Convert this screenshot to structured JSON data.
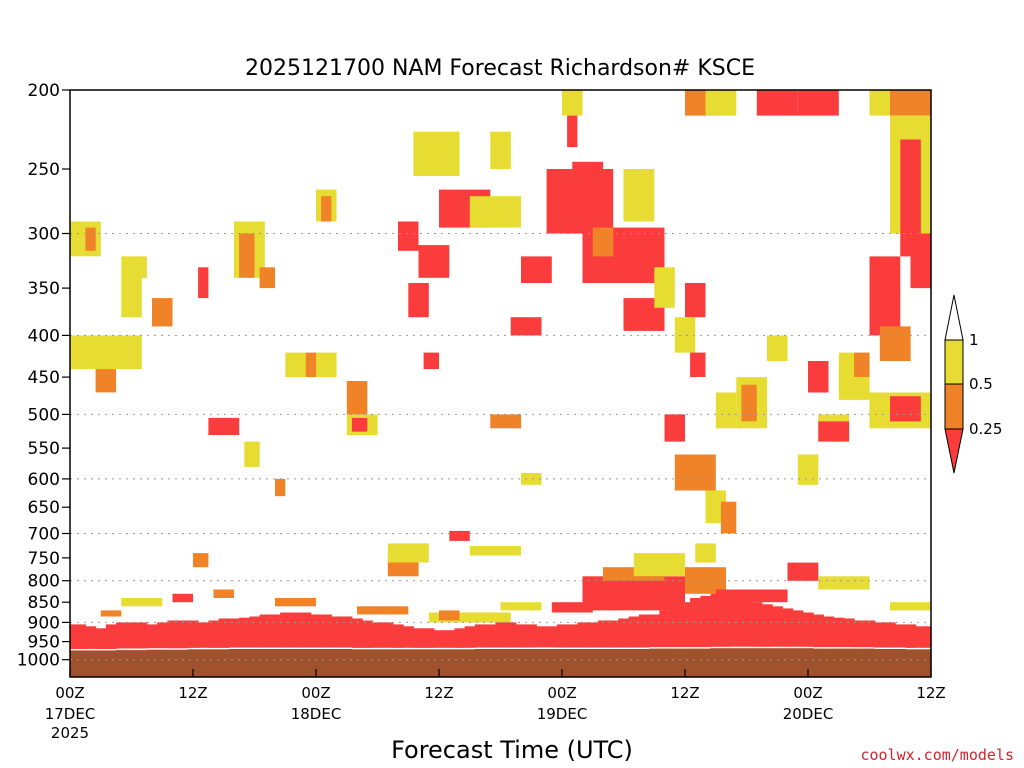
{
  "colors": {
    "background": "#ffffff",
    "lt_025": "#fa3c3c",
    "r025_05": "#f08228",
    "r05_1": "#e6dc32",
    "gt_1": "#ffffff",
    "ground": "#a0522d",
    "grid": "#999999"
  },
  "chart_data": {
    "type": "heatmap",
    "title": "2025121700 NAM Forecast Richardson# KSCE",
    "xlabel": "Forecast Time (UTC)",
    "ylabel": "",
    "y_scale": "log-pressure",
    "y_reversed": true,
    "ylim": [
      1050,
      200
    ],
    "y_ticks": [
      200,
      250,
      300,
      350,
      400,
      450,
      500,
      550,
      600,
      650,
      700,
      750,
      800,
      850,
      900,
      950,
      1000
    ],
    "y_tick_labels": [
      "200",
      "250",
      "300",
      "350",
      "400",
      "450",
      "500",
      "550",
      "600",
      "650",
      "700",
      "750",
      "800",
      "850",
      "900",
      "950",
      "1000"
    ],
    "dotted_grid_levels": [
      300,
      400,
      500,
      600,
      700,
      800,
      900,
      1000
    ],
    "x_range_hours": [
      0,
      84
    ],
    "x_ticks_hours": [
      0,
      12,
      24,
      36,
      48,
      60,
      72,
      84
    ],
    "x_tick_labels": [
      "00Z",
      "12Z",
      "00Z",
      "12Z",
      "00Z",
      "12Z",
      "00Z",
      "12Z"
    ],
    "date_labels": [
      {
        "hour": 0,
        "text": "17DEC"
      },
      {
        "hour": 24,
        "text": "18DEC"
      },
      {
        "hour": 48,
        "text": "19DEC"
      },
      {
        "hour": 72,
        "text": "20DEC"
      }
    ],
    "year_label": {
      "hour": 0,
      "text": "2025"
    },
    "legend": {
      "placement": "right",
      "labels": [
        "1",
        "0.5",
        "0.25"
      ],
      "bins": [
        {
          "range": ">1",
          "color": "#ffffff"
        },
        {
          "range": "0.5-1",
          "color": "#e6dc32"
        },
        {
          "range": "0.25-0.5",
          "color": "#f08228"
        },
        {
          "range": "<0.25",
          "color": "#fa3c3c"
        }
      ]
    },
    "ground_top_mb": [
      970,
      970,
      970,
      970,
      970,
      969,
      969,
      969,
      968,
      968,
      968,
      968,
      967,
      967,
      967,
      967,
      966,
      966,
      966,
      966,
      966,
      966,
      966,
      966,
      966,
      966,
      966,
      966,
      967,
      967,
      967,
      967,
      967,
      967,
      967,
      967,
      967,
      967,
      967,
      967,
      966,
      966,
      966,
      966,
      966,
      966,
      966,
      966,
      966,
      966,
      966,
      966,
      966,
      966,
      966,
      966,
      966,
      965,
      965,
      965,
      965,
      965,
      965,
      964,
      964,
      964,
      964,
      964,
      964,
      964,
      964,
      964,
      964,
      965,
      965,
      965,
      965,
      965,
      965,
      966,
      966,
      966,
      967,
      967,
      967
    ],
    "ri_lt_025_top_mb": [
      905,
      905,
      910,
      915,
      905,
      900,
      900,
      900,
      905,
      900,
      895,
      895,
      895,
      900,
      895,
      890,
      890,
      888,
      885,
      880,
      880,
      875,
      875,
      875,
      880,
      880,
      885,
      885,
      890,
      895,
      900,
      900,
      905,
      910,
      915,
      915,
      920,
      920,
      915,
      910,
      905,
      905,
      900,
      900,
      905,
      905,
      910,
      910,
      905,
      905,
      900,
      900,
      895,
      895,
      890,
      885,
      880,
      880,
      870,
      860,
      850,
      840,
      835,
      830,
      835,
      840,
      845,
      850,
      855,
      860,
      865,
      870,
      875,
      880,
      885,
      888,
      890,
      895,
      895,
      900,
      900,
      905,
      905,
      910,
      910
    ],
    "patches": [
      {
        "h": [
          0,
          3
        ],
        "p": [
          290,
          320
        ],
        "c": "0.5-1"
      },
      {
        "h": [
          1.5,
          2.5
        ],
        "p": [
          295,
          315
        ],
        "c": "0.25-0.5"
      },
      {
        "h": [
          0,
          7
        ],
        "p": [
          400,
          440
        ],
        "c": "0.5-1"
      },
      {
        "h": [
          2.5,
          4.5
        ],
        "p": [
          440,
          470
        ],
        "c": "0.25-0.5"
      },
      {
        "h": [
          5,
          7
        ],
        "p": [
          320,
          380
        ],
        "c": "0.5-1"
      },
      {
        "h": [
          8,
          10
        ],
        "p": [
          360,
          390
        ],
        "c": "0.25-0.5"
      },
      {
        "h": [
          12.5,
          13.5
        ],
        "p": [
          330,
          360
        ],
        "c": "<0.25"
      },
      {
        "h": [
          16,
          19
        ],
        "p": [
          290,
          340
        ],
        "c": "0.5-1"
      },
      {
        "h": [
          16.5,
          18
        ],
        "p": [
          300,
          340
        ],
        "c": "0.25-0.5"
      },
      {
        "h": [
          18.5,
          20
        ],
        "p": [
          330,
          350
        ],
        "c": "0.25-0.5"
      },
      {
        "h": [
          24,
          26
        ],
        "p": [
          265,
          290
        ],
        "c": "0.5-1"
      },
      {
        "h": [
          24.5,
          25.5
        ],
        "p": [
          270,
          290
        ],
        "c": "0.25-0.5"
      },
      {
        "h": [
          21,
          26
        ],
        "p": [
          420,
          450
        ],
        "c": "0.5-1"
      },
      {
        "h": [
          23,
          24
        ],
        "p": [
          420,
          450
        ],
        "c": "0.25-0.5"
      },
      {
        "h": [
          27,
          30
        ],
        "p": [
          500,
          530
        ],
        "c": "0.5-1"
      },
      {
        "h": [
          27.5,
          29
        ],
        "p": [
          505,
          525
        ],
        "c": "<0.25"
      },
      {
        "h": [
          13.5,
          16.5
        ],
        "p": [
          505,
          530
        ],
        "c": "<0.25"
      },
      {
        "h": [
          32,
          34
        ],
        "p": [
          290,
          315
        ],
        "c": "<0.25"
      },
      {
        "h": [
          33,
          35
        ],
        "p": [
          345,
          380
        ],
        "c": "<0.25"
      },
      {
        "h": [
          34,
          36
        ],
        "p": [
          230,
          255
        ],
        "c": "0.25-0.5"
      },
      {
        "h": [
          33.5,
          38
        ],
        "p": [
          225,
          255
        ],
        "c": "0.5-1"
      },
      {
        "h": [
          36,
          41
        ],
        "p": [
          265,
          295
        ],
        "c": "<0.25"
      },
      {
        "h": [
          39,
          44
        ],
        "p": [
          270,
          295
        ],
        "c": "0.5-1"
      },
      {
        "h": [
          34,
          37
        ],
        "p": [
          310,
          340
        ],
        "c": "<0.25"
      },
      {
        "h": [
          34.5,
          36
        ],
        "p": [
          420,
          440
        ],
        "c": "<0.25"
      },
      {
        "h": [
          41,
          43
        ],
        "p": [
          225,
          250
        ],
        "c": "0.5-1"
      },
      {
        "h": [
          44,
          47
        ],
        "p": [
          320,
          345
        ],
        "c": "<0.25"
      },
      {
        "h": [
          43,
          46
        ],
        "p": [
          380,
          400
        ],
        "c": "<0.25"
      },
      {
        "h": [
          46.5,
          53
        ],
        "p": [
          250,
          300
        ],
        "c": "<0.25"
      },
      {
        "h": [
          49,
          52
        ],
        "p": [
          245,
          270
        ],
        "c": "<0.25"
      },
      {
        "h": [
          50,
          58
        ],
        "p": [
          295,
          345
        ],
        "c": "<0.25"
      },
      {
        "h": [
          51,
          53
        ],
        "p": [
          295,
          320
        ],
        "c": "0.25-0.5"
      },
      {
        "h": [
          54,
          58
        ],
        "p": [
          360,
          395
        ],
        "c": "<0.25"
      },
      {
        "h": [
          48,
          50
        ],
        "p": [
          200,
          215
        ],
        "c": "0.5-1"
      },
      {
        "h": [
          48.5,
          49.5
        ],
        "p": [
          215,
          235
        ],
        "c": "<0.25"
      },
      {
        "h": [
          54,
          57
        ],
        "p": [
          250,
          290
        ],
        "c": "0.5-1"
      },
      {
        "h": [
          57,
          59
        ],
        "p": [
          330,
          370
        ],
        "c": "0.5-1"
      },
      {
        "h": [
          60,
          62
        ],
        "p": [
          345,
          380
        ],
        "c": "<0.25"
      },
      {
        "h": [
          60,
          63
        ],
        "p": [
          200,
          215
        ],
        "c": "0.25-0.5"
      },
      {
        "h": [
          62,
          65
        ],
        "p": [
          200,
          215
        ],
        "c": "0.5-1"
      },
      {
        "h": [
          67,
          71
        ],
        "p": [
          200,
          215
        ],
        "c": "<0.25"
      },
      {
        "h": [
          71,
          75
        ],
        "p": [
          200,
          215
        ],
        "c": "<0.25"
      },
      {
        "h": [
          78,
          84
        ],
        "p": [
          200,
          215
        ],
        "c": "0.5-1"
      },
      {
        "h": [
          80,
          84
        ],
        "p": [
          200,
          215
        ],
        "c": "0.25-0.5"
      },
      {
        "h": [
          80,
          84
        ],
        "p": [
          215,
          300
        ],
        "c": "0.5-1"
      },
      {
        "h": [
          81,
          83
        ],
        "p": [
          230,
          320
        ],
        "c": "<0.25"
      },
      {
        "h": [
          82,
          84
        ],
        "p": [
          300,
          350
        ],
        "c": "<0.25"
      },
      {
        "h": [
          78,
          81
        ],
        "p": [
          320,
          400
        ],
        "c": "<0.25"
      },
      {
        "h": [
          79,
          82
        ],
        "p": [
          390,
          430
        ],
        "c": "0.25-0.5"
      },
      {
        "h": [
          78,
          84
        ],
        "p": [
          470,
          520
        ],
        "c": "0.5-1"
      },
      {
        "h": [
          80,
          83
        ],
        "p": [
          475,
          510
        ],
        "c": "<0.25"
      },
      {
        "h": [
          75,
          78
        ],
        "p": [
          420,
          480
        ],
        "c": "0.5-1"
      },
      {
        "h": [
          76.5,
          78
        ],
        "p": [
          420,
          450
        ],
        "c": "0.25-0.5"
      },
      {
        "h": [
          72,
          74
        ],
        "p": [
          430,
          470
        ],
        "c": "<0.25"
      },
      {
        "h": [
          73,
          76
        ],
        "p": [
          500,
          540
        ],
        "c": "0.5-1"
      },
      {
        "h": [
          71,
          73
        ],
        "p": [
          560,
          610
        ],
        "c": "0.5-1"
      },
      {
        "h": [
          73,
          76
        ],
        "p": [
          510,
          540
        ],
        "c": "<0.25"
      },
      {
        "h": [
          65,
          68
        ],
        "p": [
          450,
          520
        ],
        "c": "0.5-1"
      },
      {
        "h": [
          65.5,
          67
        ],
        "p": [
          460,
          510
        ],
        "c": "0.25-0.5"
      },
      {
        "h": [
          68,
          70
        ],
        "p": [
          400,
          430
        ],
        "c": "0.5-1"
      },
      {
        "h": [
          63,
          65
        ],
        "p": [
          470,
          520
        ],
        "c": "0.5-1"
      },
      {
        "h": [
          59,
          61
        ],
        "p": [
          380,
          420
        ],
        "c": "0.5-1"
      },
      {
        "h": [
          60.5,
          62
        ],
        "p": [
          420,
          450
        ],
        "c": "<0.25"
      },
      {
        "h": [
          58,
          60
        ],
        "p": [
          500,
          540
        ],
        "c": "<0.25"
      },
      {
        "h": [
          59,
          63
        ],
        "p": [
          560,
          620
        ],
        "c": "0.25-0.5"
      },
      {
        "h": [
          62,
          64
        ],
        "p": [
          620,
          680
        ],
        "c": "0.5-1"
      },
      {
        "h": [
          63.5,
          65
        ],
        "p": [
          640,
          700
        ],
        "c": "0.25-0.5"
      },
      {
        "h": [
          41,
          44
        ],
        "p": [
          500,
          520
        ],
        "c": "0.25-0.5"
      },
      {
        "h": [
          44,
          46
        ],
        "p": [
          590,
          610
        ],
        "c": "0.5-1"
      },
      {
        "h": [
          31,
          34
        ],
        "p": [
          745,
          790
        ],
        "c": "0.25-0.5"
      },
      {
        "h": [
          31,
          35
        ],
        "p": [
          720,
          760
        ],
        "c": "0.5-1"
      },
      {
        "h": [
          37,
          39
        ],
        "p": [
          695,
          715
        ],
        "c": "<0.25"
      },
      {
        "h": [
          39,
          42
        ],
        "p": [
          725,
          745
        ],
        "c": "0.5-1"
      },
      {
        "h": [
          42,
          44
        ],
        "p": [
          725,
          745
        ],
        "c": "0.5-1"
      },
      {
        "h": [
          27,
          29
        ],
        "p": [
          455,
          500
        ],
        "c": "0.25-0.5"
      },
      {
        "h": [
          20,
          21
        ],
        "p": [
          600,
          630
        ],
        "c": "0.25-0.5"
      },
      {
        "h": [
          17,
          18.5
        ],
        "p": [
          540,
          580
        ],
        "c": "0.5-1"
      },
      {
        "h": [
          6,
          7.5
        ],
        "p": [
          320,
          340
        ],
        "c": "0.5-1"
      },
      {
        "h": [
          12,
          13.5
        ],
        "p": [
          740,
          770
        ],
        "c": "0.25-0.5"
      },
      {
        "h": [
          10,
          12
        ],
        "p": [
          830,
          850
        ],
        "c": "<0.25"
      },
      {
        "h": [
          14,
          16
        ],
        "p": [
          820,
          840
        ],
        "c": "0.25-0.5"
      },
      {
        "h": [
          50,
          60
        ],
        "p": [
          790,
          870
        ],
        "c": "<0.25"
      },
      {
        "h": [
          52,
          58
        ],
        "p": [
          770,
          800
        ],
        "c": "0.25-0.5"
      },
      {
        "h": [
          55,
          60
        ],
        "p": [
          740,
          790
        ],
        "c": "0.5-1"
      },
      {
        "h": [
          60,
          64
        ],
        "p": [
          770,
          830
        ],
        "c": "0.25-0.5"
      },
      {
        "h": [
          61,
          63
        ],
        "p": [
          720,
          760
        ],
        "c": "0.5-1"
      },
      {
        "h": [
          35,
          43
        ],
        "p": [
          875,
          900
        ],
        "c": "0.5-1"
      },
      {
        "h": [
          36,
          38
        ],
        "p": [
          870,
          895
        ],
        "c": "0.25-0.5"
      },
      {
        "h": [
          42,
          46
        ],
        "p": [
          850,
          870
        ],
        "c": "0.5-1"
      },
      {
        "h": [
          47,
          51
        ],
        "p": [
          850,
          875
        ],
        "c": "<0.25"
      },
      {
        "h": [
          63,
          70
        ],
        "p": [
          820,
          850
        ],
        "c": "<0.25"
      },
      {
        "h": [
          70,
          73
        ],
        "p": [
          760,
          800
        ],
        "c": "<0.25"
      },
      {
        "h": [
          73,
          78
        ],
        "p": [
          790,
          820
        ],
        "c": "0.5-1"
      },
      {
        "h": [
          80,
          84
        ],
        "p": [
          850,
          870
        ],
        "c": "0.5-1"
      },
      {
        "h": [
          28,
          33
        ],
        "p": [
          860,
          880
        ],
        "c": "0.25-0.5"
      },
      {
        "h": [
          20,
          24
        ],
        "p": [
          840,
          860
        ],
        "c": "0.25-0.5"
      },
      {
        "h": [
          5,
          9
        ],
        "p": [
          840,
          860
        ],
        "c": "0.5-1"
      },
      {
        "h": [
          3,
          5
        ],
        "p": [
          870,
          885
        ],
        "c": "0.25-0.5"
      }
    ]
  }
}
